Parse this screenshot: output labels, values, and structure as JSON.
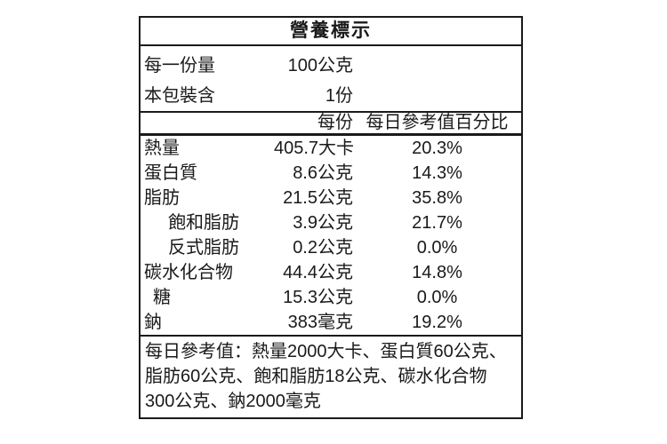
{
  "nutrition_label": {
    "title": "營養標示",
    "serving_rows": [
      {
        "label": "每一份量",
        "value": "100公克"
      },
      {
        "label": "本包裝含",
        "value": "1份"
      }
    ],
    "column_headers": {
      "per_serving": "每份",
      "daily_value_percent": "每日參考值百分比"
    },
    "nutrients": [
      {
        "name": "熱量",
        "amount": "405.7大卡",
        "daily_value": "20.3%"
      },
      {
        "name": "蛋白質",
        "amount": "8.6公克",
        "daily_value": "14.3%"
      },
      {
        "name": "脂肪",
        "amount": "21.5公克",
        "daily_value": "35.8%"
      },
      {
        "name": "飽和脂肪",
        "amount": "3.9公克",
        "daily_value": "21.7%"
      },
      {
        "name": "反式脂肪",
        "amount": "0.2公克",
        "daily_value": "0.0%"
      },
      {
        "name": "碳水化合物",
        "amount": "44.4公克",
        "daily_value": "14.8%"
      },
      {
        "name": "糖",
        "amount": "15.3公克",
        "daily_value": "0.0%"
      },
      {
        "name": "鈉",
        "amount": "383毫克",
        "daily_value": "19.2%"
      }
    ],
    "footnote_lines": [
      "每日參考值：熱量2000大卡、蛋白質60公克、",
      "脂肪60公克、飽和脂肪18公克、碳水化合物",
      "300公克、鈉2000毫克"
    ]
  },
  "colors": {
    "text": "#1a1a1a",
    "border": "#1a1a1a",
    "background": "#ffffff"
  }
}
